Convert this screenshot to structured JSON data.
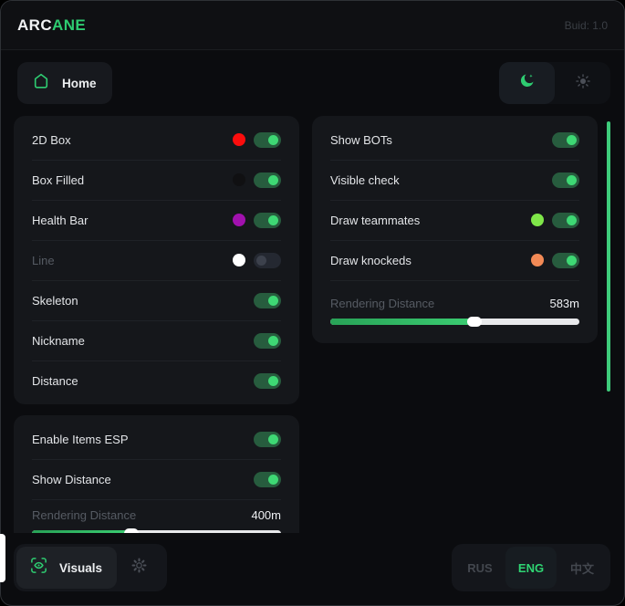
{
  "header": {
    "brand_primary": "ARC",
    "brand_accent": "ANE",
    "build": "Buid: 1.0"
  },
  "nav": {
    "home_label": "Home"
  },
  "colors": {
    "accent_green": "#2ecc71",
    "toggle_knob_on": "#3ed874",
    "slider_fill": "#2fb563",
    "scrollbar": "#3ecb7a"
  },
  "panels": {
    "esp": {
      "rows": [
        {
          "label": "2D Box",
          "swatch": "#fb0d0d",
          "on": true,
          "dim": false
        },
        {
          "label": "Box Filled",
          "swatch": "#101012",
          "on": true,
          "dim": false
        },
        {
          "label": "Health Bar",
          "swatch": "#a111ae",
          "on": true,
          "dim": false
        },
        {
          "label": "Line",
          "swatch": "#ffffff",
          "on": false,
          "dim": true
        },
        {
          "label": "Skeleton",
          "on": true,
          "dim": false
        },
        {
          "label": "Nickname",
          "on": true,
          "dim": false
        },
        {
          "label": "Distance",
          "on": true,
          "dim": false
        }
      ]
    },
    "items": {
      "rows": [
        {
          "label": "Enable Items ESP",
          "on": true
        },
        {
          "label": "Show Distance",
          "on": true
        }
      ],
      "slider": {
        "label": "Rendering Distance",
        "value": "400m",
        "percent": 40
      }
    },
    "bots": {
      "rows": [
        {
          "label": "Show BOTs",
          "on": true
        },
        {
          "label": "Visible check",
          "on": true
        },
        {
          "label": "Draw teammates",
          "swatch": "#7fe649",
          "on": true
        },
        {
          "label": "Draw knockeds",
          "swatch": "#f28a56",
          "on": true
        }
      ],
      "slider": {
        "label": "Rendering Distance",
        "value": "583m",
        "percent": 58
      }
    }
  },
  "footer": {
    "visuals_label": "Visuals",
    "languages": [
      {
        "label": "RUS",
        "active": false
      },
      {
        "label": "ENG",
        "active": true
      },
      {
        "label": "中文",
        "active": false
      }
    ]
  }
}
